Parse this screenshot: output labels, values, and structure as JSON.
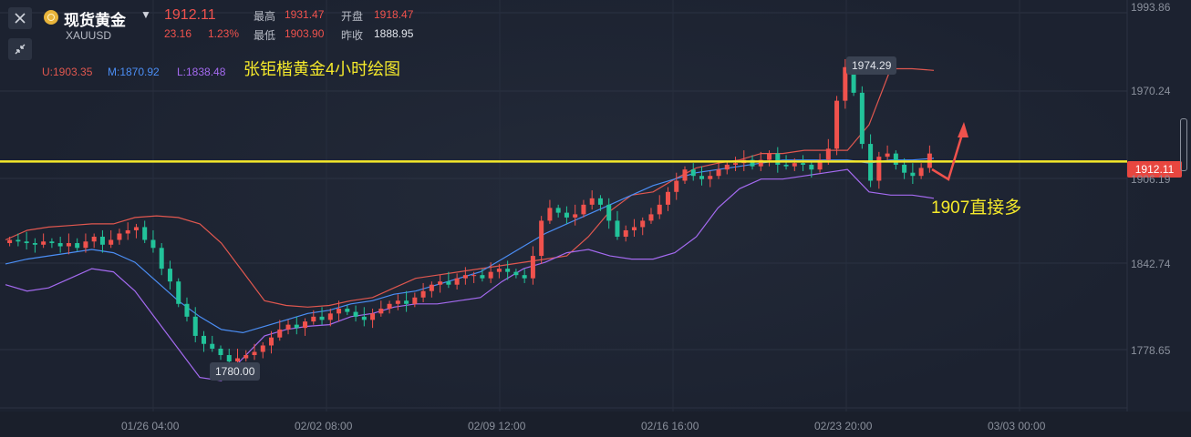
{
  "header": {
    "title": "现货黄金",
    "symbol": "XAUUSD",
    "price": "1912.11",
    "change": "23.16",
    "change_percent": "1.23%",
    "high_label": "最高",
    "high_value": "1931.47",
    "open_label": "开盘",
    "open_value": "1918.47",
    "low_label": "最低",
    "low_value": "1903.90",
    "prev_close_label": "昨收",
    "prev_close_value": "1888.95",
    "icons": [
      "close-icon",
      "shrink-icon",
      "gold-coin-icon",
      "caret-down-icon"
    ]
  },
  "indicator": {
    "upper": "U:1903.35",
    "middle": "M:1870.92",
    "lower": "L:1838.48",
    "colors": {
      "upper": "#e0574f",
      "middle": "#4b8ef5",
      "lower": "#a46af0"
    }
  },
  "annotations": {
    "title": "张钜楷黄金4小时绘图",
    "buy_note": "1907直接多",
    "high_marker": "1974.29",
    "low_marker": "1780.00",
    "current_price_tag": "1912.11"
  },
  "chart_data": {
    "type": "candlestick",
    "ylim": [
      1753,
      2000
    ],
    "y_ticks": [
      "1993.86",
      "1970.24",
      "1906.19",
      "1842.74",
      "1778.65"
    ],
    "x_ticks": [
      "01/26 04:00",
      "02/02 08:00",
      "02/09 12:00",
      "02/16 16:00",
      "02/23 20:00",
      "03/03 00:00"
    ],
    "horizontal_line": 1907,
    "colors": {
      "up": "#f0524d",
      "down": "#22c39a",
      "line": "#f5e92b"
    },
    "close_series": [
      1858,
      1857,
      1856,
      1855,
      1857,
      1856,
      1854,
      1856,
      1853,
      1857,
      1860,
      1855,
      1858,
      1862,
      1864,
      1866,
      1858,
      1853,
      1840,
      1832,
      1818,
      1810,
      1798,
      1793,
      1790,
      1786,
      1782,
      1784,
      1786,
      1788,
      1792,
      1797,
      1802,
      1805,
      1803,
      1807,
      1810,
      1808,
      1812,
      1815,
      1813,
      1810,
      1808,
      1812,
      1815,
      1818,
      1820,
      1818,
      1822,
      1826,
      1830,
      1832,
      1830,
      1834,
      1836,
      1836,
      1834,
      1838,
      1840,
      1838,
      1836,
      1834,
      1848,
      1870,
      1878,
      1875,
      1872,
      1874,
      1880,
      1884,
      1880,
      1870,
      1860,
      1864,
      1866,
      1870,
      1874,
      1880,
      1888,
      1895,
      1902,
      1898,
      1896,
      1898,
      1902,
      1905,
      1906,
      1908,
      1904,
      1908,
      1912,
      1905,
      1904,
      1906,
      1905,
      1902,
      1908,
      1915,
      1945,
      1966,
      1950,
      1918,
      1895,
      1910,
      1912,
      1905,
      1900,
      1898,
      1903,
      1912
    ],
    "bollinger_upper": [
      1858,
      1864,
      1866,
      1867,
      1868,
      1868,
      1872,
      1873,
      1872,
      1868,
      1856,
      1838,
      1820,
      1817,
      1816,
      1817,
      1820,
      1822,
      1828,
      1834,
      1836,
      1838,
      1840,
      1842,
      1844,
      1846,
      1848,
      1860,
      1876,
      1886,
      1888,
      1896,
      1903,
      1906,
      1908,
      1912,
      1912,
      1914,
      1914,
      1914,
      1930,
      1965,
      1965,
      1964
    ],
    "bollinger_middle": [
      1843,
      1846,
      1848,
      1850,
      1852,
      1850,
      1844,
      1832,
      1820,
      1810,
      1802,
      1800,
      1804,
      1808,
      1812,
      1814,
      1818,
      1820,
      1824,
      1826,
      1830,
      1834,
      1838,
      1846,
      1854,
      1862,
      1868,
      1874,
      1880,
      1886,
      1892,
      1896,
      1900,
      1902,
      1904,
      1906,
      1908,
      1908,
      1908,
      1908,
      1906,
      1908,
      1908,
      1909
    ],
    "bollinger_lower": [
      1830,
      1826,
      1828,
      1834,
      1840,
      1838,
      1826,
      1808,
      1790,
      1772,
      1770,
      1784,
      1798,
      1802,
      1804,
      1805,
      1810,
      1812,
      1816,
      1818,
      1818,
      1820,
      1822,
      1832,
      1840,
      1844,
      1850,
      1852,
      1848,
      1846,
      1846,
      1850,
      1860,
      1878,
      1890,
      1896,
      1896,
      1898,
      1900,
      1902,
      1888,
      1886,
      1886,
      1884
    ]
  }
}
